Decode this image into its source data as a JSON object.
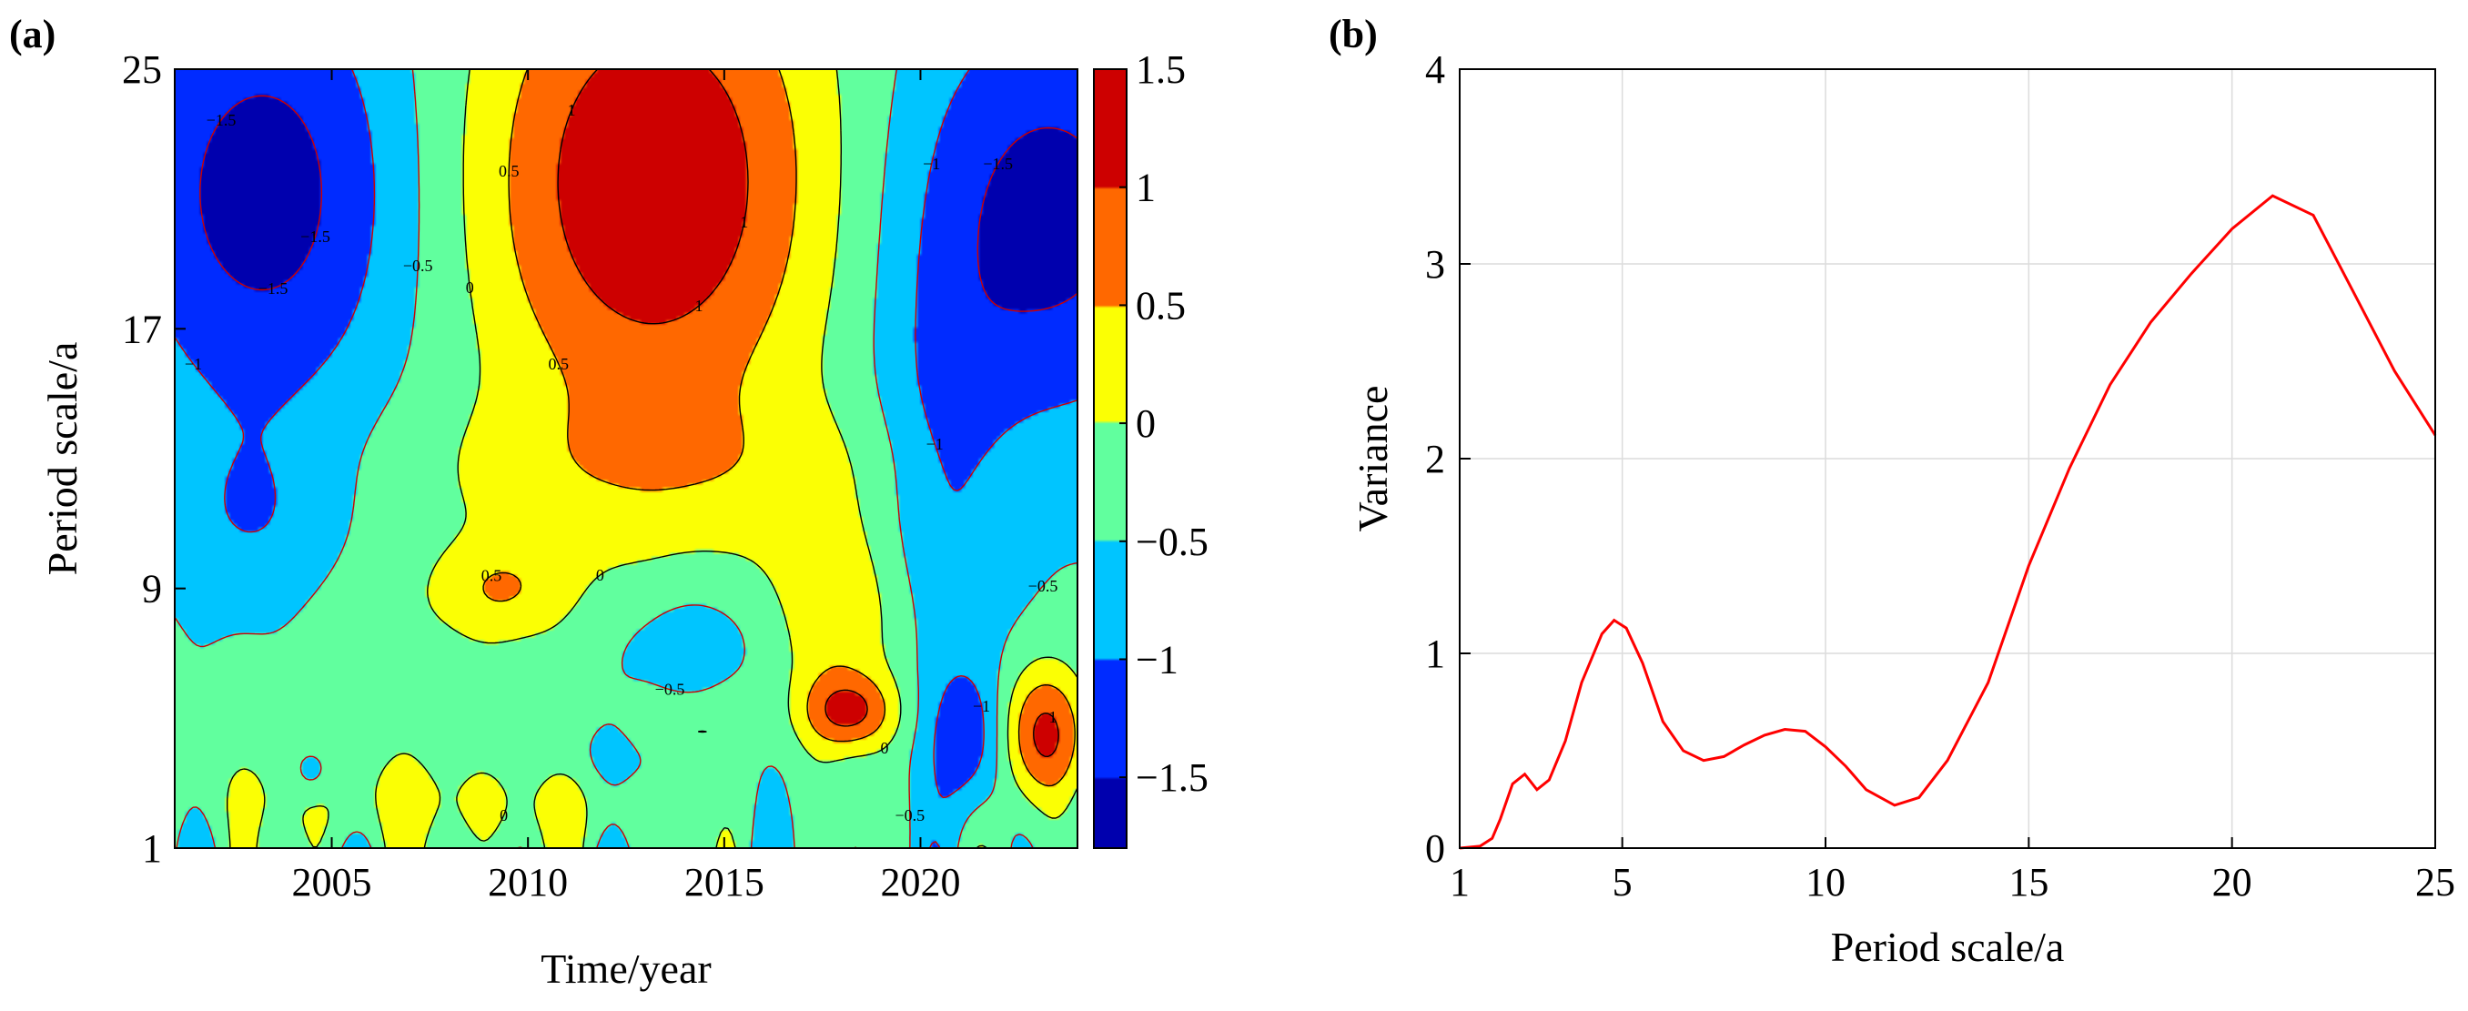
{
  "panels": [
    {
      "label": "(a)",
      "chart_data": {
        "type": "heatmap",
        "title": "",
        "xlabel": "Time/year",
        "ylabel": "Period scale/a",
        "xlim": [
          2001,
          2024
        ],
        "ylim": [
          1,
          25
        ],
        "xticks": [
          2005,
          2010,
          2015,
          2020
        ],
        "yticks": [
          1,
          9,
          17,
          25
        ],
        "colorbar": {
          "range": [
            -1.8,
            1.5
          ],
          "ticks": [
            1.5,
            1,
            0.5,
            0,
            -0.5,
            -1,
            -1.5
          ],
          "tick_labels": [
            "1.5",
            "1",
            "0.5",
            "0",
            "−0.5",
            "−1",
            "−1.5"
          ]
        },
        "contour_labels": [
          "0.5",
          "−0.5",
          "0",
          "−1",
          "1",
          "1.5"
        ],
        "field": {
          "base": -0.4,
          "sources": [
            {
              "x": 2003.3,
              "y": 21.2,
              "sx": 2.6,
              "sy": 4.8,
              "a": -1.35
            },
            {
              "x": 2023.2,
              "y": 20.5,
              "sx": 2.8,
              "sy": 4.8,
              "a": -1.3
            },
            {
              "x": 2013.2,
              "y": 21.5,
              "sx": 3.2,
              "sy": 5.5,
              "a": 1.9
            },
            {
              "x": 2013.5,
              "y": 12.8,
              "sx": 5.0,
              "sy": 1.6,
              "a": 0.45
            },
            {
              "x": 2011.0,
              "y": 8.5,
              "sx": 4.5,
              "sy": 2.0,
              "a": 0.4
            },
            {
              "x": 2009.3,
              "y": 9.0,
              "sx": 1.0,
              "sy": 0.9,
              "a": 0.55
            },
            {
              "x": 2017.8,
              "y": 8.0,
              "sx": 1.3,
              "sy": 2.4,
              "a": 0.8
            },
            {
              "x": 2018.2,
              "y": 5.2,
              "sx": 0.8,
              "sy": 0.8,
              "a": 1.3
            },
            {
              "x": 2023.1,
              "y": 4.5,
              "sx": 0.8,
              "sy": 1.5,
              "a": 1.6
            },
            {
              "x": 2021.3,
              "y": 4.3,
              "sx": 0.7,
              "sy": 1.6,
              "a": -1.0
            },
            {
              "x": 2003.0,
              "y": 11.0,
              "sx": 1.6,
              "sy": 2.2,
              "a": -0.55
            },
            {
              "x": 2014.2,
              "y": 7.6,
              "sx": 2.1,
              "sy": 1.5,
              "a": -0.65
            },
            {
              "x": 2020.6,
              "y": 12.0,
              "sx": 1.2,
              "sy": 4.5,
              "a": -0.6
            },
            {
              "x": 2005.0,
              "y": 2.6,
              "sx": 3.5,
              "sy": 1.2,
              "a": 0.4
            },
            {
              "x": 2010.0,
              "y": 2.2,
              "sx": 2.5,
              "sy": 1.0,
              "a": 0.35
            },
            {
              "x": 2004.5,
              "y": 3.3,
              "sx": 0.4,
              "sy": 0.6,
              "a": -0.6
            },
            {
              "x": 2014.0,
              "y": 4.6,
              "sx": 0.9,
              "sy": 0.6,
              "a": 0.5
            },
            {
              "x": 2012.5,
              "y": 3.8,
              "sx": 1.2,
              "sy": 0.7,
              "a": -0.3
            }
          ],
          "waves": [
            {
              "a": 0.35,
              "k": 3.0,
              "p": 0.5,
              "ydecay": 2.2
            },
            {
              "a": 0.25,
              "k": 1.7,
              "p": 1.3,
              "ydecay": 2.2
            }
          ]
        }
      }
    },
    {
      "label": "(b)",
      "chart_data": {
        "type": "line",
        "title": "",
        "xlabel": "Period scale/a",
        "ylabel": "Variance",
        "xlim": [
          1,
          25
        ],
        "ylim": [
          0,
          4
        ],
        "xticks": [
          1,
          5,
          10,
          15,
          20,
          25
        ],
        "yticks": [
          0,
          1,
          2,
          3,
          4
        ],
        "grid": true,
        "series": [
          {
            "name": "",
            "color": "#ff0000",
            "x": [
              1,
              1.5,
              1.8,
              2.0,
              2.3,
              2.6,
              2.9,
              3.2,
              3.6,
              4.0,
              4.5,
              4.8,
              5.1,
              5.5,
              6.0,
              6.5,
              7.0,
              7.5,
              8.0,
              8.5,
              9.0,
              9.5,
              10.0,
              10.5,
              11.0,
              11.7,
              12.3,
              13.0,
              14.0,
              15.0,
              16.0,
              17.0,
              18.0,
              19.0,
              20.0,
              21.0,
              22.0,
              23.0,
              24.0,
              25.0
            ],
            "y": [
              0,
              0.01,
              0.05,
              0.15,
              0.33,
              0.38,
              0.3,
              0.35,
              0.55,
              0.85,
              1.1,
              1.17,
              1.13,
              0.95,
              0.65,
              0.5,
              0.45,
              0.47,
              0.53,
              0.58,
              0.61,
              0.6,
              0.52,
              0.42,
              0.3,
              0.22,
              0.26,
              0.45,
              0.85,
              1.45,
              1.95,
              2.38,
              2.7,
              2.95,
              3.18,
              3.35,
              3.25,
              2.85,
              2.45,
              2.12
            ]
          }
        ]
      }
    }
  ]
}
